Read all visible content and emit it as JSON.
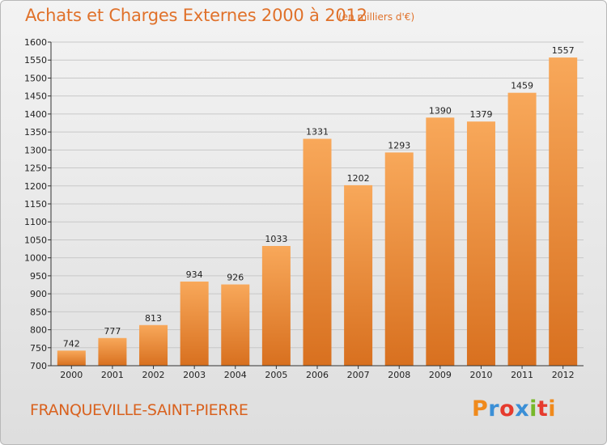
{
  "header": {
    "title": "Achats et Charges Externes 2000 à 2012",
    "unit": "(en milliers d'€)"
  },
  "footer": {
    "commune": "FRANQUEVILLE-SAINT-PIERRE",
    "logo_text": "Proxiti",
    "logo_colors": [
      "#f08a1c",
      "#3b8fd6",
      "#e63b2e",
      "#3b8fd6",
      "#77b82a",
      "#e63b2e",
      "#f08a1c"
    ]
  },
  "colors": {
    "bar_light": "#f8a85a",
    "bar_dark": "#d8701f",
    "grid": "#c8c8c8",
    "axis": "#333333"
  },
  "chart_data": {
    "type": "bar",
    "title": "Achats et Charges Externes 2000 à 2012",
    "xlabel": "",
    "ylabel": "",
    "categories": [
      "2000",
      "2001",
      "2002",
      "2003",
      "2004",
      "2005",
      "2006",
      "2007",
      "2008",
      "2009",
      "2010",
      "2011",
      "2012"
    ],
    "values": [
      742,
      777,
      813,
      934,
      926,
      1033,
      1331,
      1202,
      1293,
      1390,
      1379,
      1459,
      1557
    ],
    "ylim": [
      700,
      1600
    ],
    "ytick_step": 50,
    "grid": true
  }
}
